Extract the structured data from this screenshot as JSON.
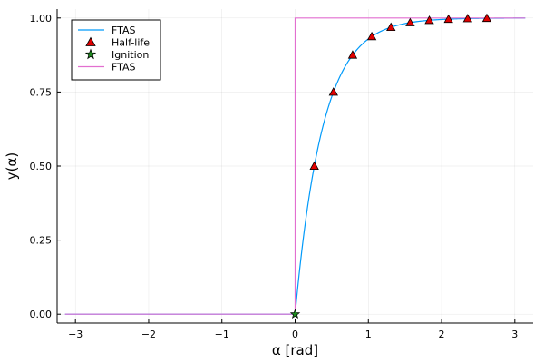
{
  "chart_data": {
    "type": "line",
    "title": "",
    "xlabel": "α [rad]",
    "ylabel": "y(α)",
    "xlim": [
      -3.25,
      3.25
    ],
    "ylim": [
      -0.03,
      1.03
    ],
    "x_ticks": [
      -3,
      -2,
      -1,
      0,
      1,
      2,
      3
    ],
    "x_tick_labels": [
      "−3",
      "−2",
      "−1",
      "0",
      "1",
      "2",
      "3"
    ],
    "y_ticks": [
      0,
      0.25,
      0.5,
      0.75,
      1.0
    ],
    "y_tick_labels": [
      "0.00",
      "0.25",
      "0.50",
      "0.75",
      "1.00"
    ],
    "grid": true,
    "legend_position": "top-left",
    "series": [
      {
        "name": "FTAS",
        "kind": "line",
        "color": "#009AFA",
        "function": "y = 0 for α ≤ 0; y = 1 − exp(−α / 0.3777) for α > 0",
        "tau": 0.3777,
        "domain": [
          -3.1416,
          3.1416
        ]
      },
      {
        "name": "Half-life",
        "kind": "scatter",
        "marker": "triangle",
        "color": "#E00000",
        "x": [
          0.2618,
          0.5236,
          0.7854,
          1.0472,
          1.309,
          1.5708,
          1.8326,
          2.0944,
          2.3562,
          2.618
        ],
        "y": [
          0.5,
          0.75,
          0.875,
          0.9375,
          0.96875,
          0.984375,
          0.9921875,
          0.99609375,
          0.998046875,
          0.9990234375
        ]
      },
      {
        "name": "Ignition",
        "kind": "scatter",
        "marker": "star",
        "color": "#1F8A1F",
        "x": [
          0
        ],
        "y": [
          0
        ]
      },
      {
        "name": "FTAS",
        "kind": "step",
        "color": "#E26FD0",
        "x": [
          -3.1416,
          0,
          0,
          3.1416
        ],
        "y": [
          0,
          0,
          1,
          1
        ]
      }
    ]
  }
}
